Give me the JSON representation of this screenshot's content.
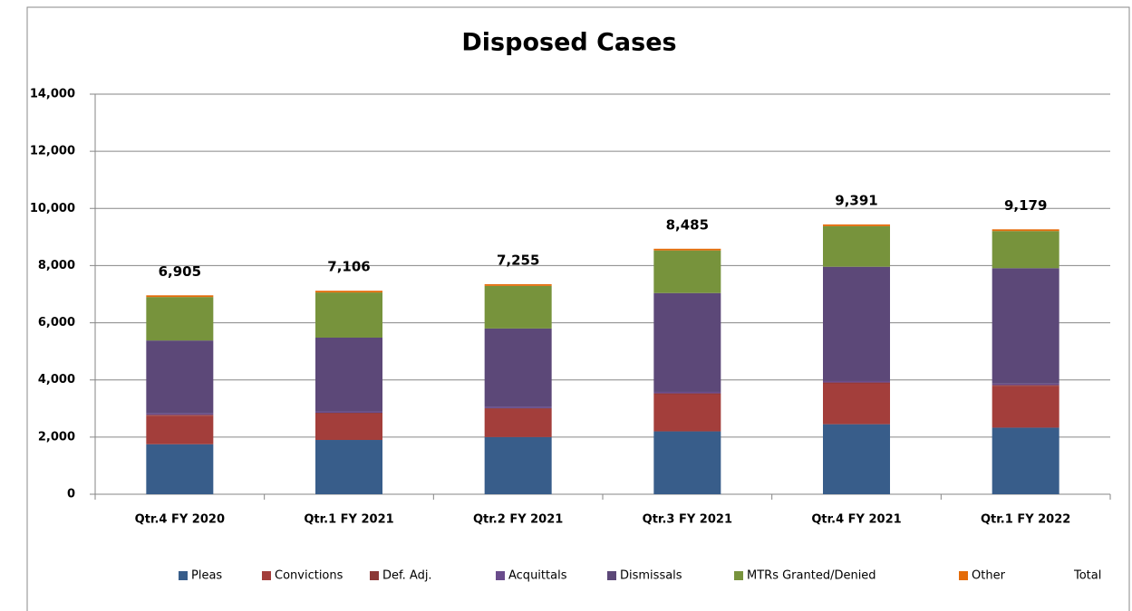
{
  "chart_data": {
    "type": "stacked_bar",
    "title": "Disposed Cases",
    "categories": [
      "Qtr.4 FY 2020",
      "Qtr.1 FY 2021",
      "Qtr.2 FY 2021",
      "Qtr.3 FY 2021",
      "Qtr.4 FY 2021",
      "Qtr.1 FY 2022"
    ],
    "series": [
      {
        "name": "Pleas",
        "color": "#385d8a",
        "values": [
          1750,
          1900,
          2000,
          2200,
          2450,
          2330
        ]
      },
      {
        "name": "Convictions",
        "color": "#a33e3b",
        "values": [
          1000,
          920,
          980,
          1300,
          1430,
          1460
        ]
      },
      {
        "name": "Def. Adj.",
        "color": "#8c3836",
        "values": [
          30,
          30,
          30,
          30,
          30,
          30
        ]
      },
      {
        "name": "Acquittals",
        "color": "#6a4c8c",
        "values": [
          50,
          50,
          50,
          50,
          50,
          50
        ]
      },
      {
        "name": "Dismissals",
        "color": "#5c4878",
        "values": [
          2550,
          2580,
          2740,
          3460,
          4000,
          4040
        ]
      },
      {
        "name": "MTRs Granted/Denied",
        "color": "#77933c",
        "values": [
          1520,
          1580,
          1490,
          1490,
          1420,
          1300
        ]
      },
      {
        "name": "Other",
        "color": "#e46c0a",
        "values": [
          60,
          60,
          60,
          60,
          60,
          60
        ]
      },
      {
        "name": "Total",
        "values": [
          6905,
          7106,
          7255,
          8485,
          9391,
          9179
        ],
        "value_labels": [
          "6,905",
          "7,106",
          "7,255",
          "8,485",
          "9,391",
          "9,179"
        ]
      }
    ],
    "ylim": [
      0,
      14000
    ],
    "yticks": [
      0,
      {
        "value": 2000,
        "label": "2,000"
      },
      {
        "value": 4000,
        "label": "4,000"
      },
      {
        "value": 6000,
        "label": "6,000"
      },
      {
        "value": 8000,
        "label": "8,000"
      },
      {
        "value": 10000,
        "label": "10,000"
      },
      {
        "value": 12000,
        "label": "12,000"
      },
      {
        "value": 14000,
        "label": "14,000"
      }
    ],
    "grid": true,
    "legend": "bottom"
  }
}
